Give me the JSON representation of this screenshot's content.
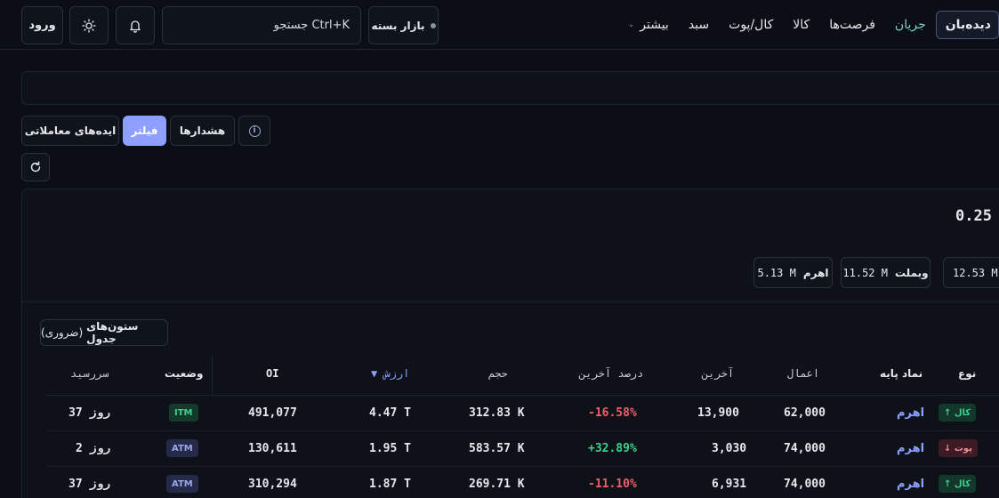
{
  "topbar": {
    "login_label": "ورود",
    "search_label": "جستجو Ctrl+K",
    "market_status": "بازار بسته",
    "nav": [
      {
        "label": "دیده‌بان",
        "active": true
      },
      {
        "label": "جریان",
        "active": false
      },
      {
        "label": "فرصت‌ها",
        "active": false
      },
      {
        "label": "کالا",
        "active": false
      },
      {
        "label": "کال/پوت",
        "active": false
      },
      {
        "label": "سبد",
        "active": false
      },
      {
        "label": "بیشتر",
        "active": false
      }
    ]
  },
  "toolbar": {
    "ideas_label": "ایده‌های معاملاتی",
    "filter_label": "فیلتر",
    "alerts_label": "هشدارها"
  },
  "summary": {
    "big_value": "0.25",
    "chips": [
      {
        "label": "",
        "value": "12.53 M"
      },
      {
        "label": "وبملت",
        "value": "11.52 M"
      },
      {
        "label": "اهرم",
        "value": "5.13 M"
      }
    ]
  },
  "table": {
    "columns_button": {
      "bold": "ستون‌های جدول",
      "normal": "(ضروری)"
    },
    "headers": {
      "type": "نوع",
      "underlying": "نماد پایه",
      "strike": "اعمال",
      "last": "آخرین",
      "last_pct": "درصد آخرین",
      "volume": "حجم",
      "value": "▼ ارزش",
      "oi": "OI",
      "status": "وضعیت",
      "maturity": "سررسید"
    },
    "rows": [
      {
        "type": "↑ کال",
        "type_kind": "call",
        "underlying": "اهرم",
        "strike": "62,000",
        "last": "13,900",
        "last_pct": "-16.58%",
        "pct_dir": "down",
        "volume": "312.83 K",
        "value": "4.47 T",
        "oi": "491,077",
        "status": "ITM",
        "maturity": "37 روز"
      },
      {
        "type": "↓ پوت",
        "type_kind": "put",
        "underlying": "اهرم",
        "strike": "74,000",
        "last": "3,030",
        "last_pct": "+32.89%",
        "pct_dir": "up",
        "volume": "583.57 K",
        "value": "1.95 T",
        "oi": "130,611",
        "status": "ATM",
        "maturity": "2 روز"
      },
      {
        "type": "↑ کال",
        "type_kind": "call",
        "underlying": "اهرم",
        "strike": "74,000",
        "last": "6,931",
        "last_pct": "-11.10%",
        "pct_dir": "down",
        "volume": "269.71 K",
        "value": "1.87 T",
        "oi": "310,294",
        "status": "ATM",
        "maturity": "37 روز"
      }
    ]
  }
}
